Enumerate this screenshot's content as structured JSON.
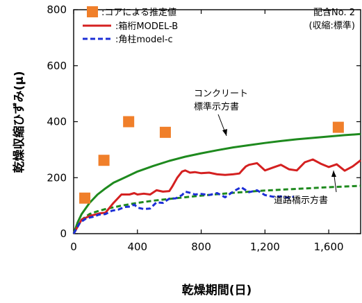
{
  "chart_data": {
    "type": "line",
    "xlabel": "乾燥期間(日)",
    "ylabel": "乾燥収縮ひずみ(μ)",
    "xlim": [
      0,
      1800
    ],
    "ylim": [
      0,
      800
    ],
    "x_ticks": [
      0,
      400,
      800,
      1200,
      1600
    ],
    "x_tick_labels": [
      "0",
      "400",
      "800",
      "1,200",
      "1,600"
    ],
    "y_ticks": [
      0,
      200,
      400,
      600,
      800
    ],
    "y_tick_labels": [
      "0",
      "200",
      "400",
      "600",
      "800"
    ],
    "grid": false,
    "legend_position": "top-left",
    "annotation": [
      "配合No. 2",
      "(収縮:標準)"
    ],
    "series": [
      {
        "name": ":コアによる推定値",
        "type": "scatter",
        "color": "#f07f2a",
        "marker": "square",
        "x": [
          70,
          190,
          345,
          575,
          1660
        ],
        "y": [
          127,
          262,
          400,
          362,
          380
        ]
      },
      {
        "name": ":箱桁MODEL-B",
        "type": "line",
        "color": "#d42020",
        "x": [
          0,
          50,
          100,
          160,
          200,
          250,
          300,
          350,
          380,
          400,
          440,
          480,
          520,
          560,
          600,
          620,
          650,
          680,
          700,
          730,
          760,
          800,
          850,
          900,
          950,
          1000,
          1040,
          1060,
          1080,
          1100,
          1150,
          1200,
          1250,
          1300,
          1350,
          1400,
          1450,
          1500,
          1550,
          1600,
          1650,
          1700,
          1750,
          1800
        ],
        "y": [
          0,
          50,
          63,
          72,
          75,
          110,
          140,
          140,
          145,
          140,
          143,
          140,
          155,
          150,
          152,
          170,
          200,
          222,
          226,
          218,
          220,
          216,
          218,
          212,
          210,
          212,
          215,
          228,
          240,
          246,
          252,
          226,
          236,
          246,
          230,
          226,
          255,
          265,
          250,
          238,
          248,
          225,
          240,
          262
        ]
      },
      {
        "name": ":角柱model-c",
        "type": "line",
        "color": "#1c2fd6",
        "dash": true,
        "x": [
          0,
          40,
          80,
          120,
          160,
          200,
          240,
          280,
          320,
          360,
          380,
          400,
          440,
          480,
          520,
          560,
          600,
          640,
          680,
          700,
          730,
          760,
          800,
          850,
          900,
          950,
          1000,
          1050,
          1100,
          1150,
          1200,
          1250,
          1300,
          1350,
          1380
        ],
        "y": [
          0,
          40,
          55,
          60,
          68,
          70,
          82,
          86,
          95,
          97,
          104,
          93,
          88,
          90,
          112,
          110,
          125,
          126,
          138,
          150,
          146,
          140,
          142,
          138,
          145,
          130,
          150,
          166,
          148,
          155,
          138,
          132,
          133,
          128,
          132
        ]
      },
      {
        "name": "コンクリート標準示方書",
        "type": "line",
        "color": "#1e8a1e",
        "x": [
          0,
          25,
          50,
          100,
          150,
          200,
          250,
          300,
          400,
          500,
          600,
          700,
          800,
          900,
          1000,
          1100,
          1200,
          1300,
          1400,
          1500,
          1600,
          1700,
          1800
        ],
        "y": [
          0,
          40,
          70,
          110,
          140,
          162,
          182,
          195,
          222,
          242,
          260,
          275,
          287,
          298,
          308,
          316,
          324,
          331,
          337,
          342,
          347,
          352,
          356
        ]
      },
      {
        "name": "道路橋示方書",
        "type": "line",
        "color": "#1e8a1e",
        "dash": true,
        "x": [
          0,
          50,
          100,
          150,
          200,
          300,
          400,
          500,
          600,
          800,
          1000,
          1200,
          1400,
          1600,
          1800
        ],
        "y": [
          0,
          50,
          70,
          80,
          88,
          100,
          110,
          118,
          124,
          136,
          146,
          154,
          160,
          166,
          171
        ]
      }
    ],
    "curve_labels": [
      [
        "コンクリート",
        "標準示方書"
      ],
      [
        "道路橋示方書"
      ]
    ]
  }
}
